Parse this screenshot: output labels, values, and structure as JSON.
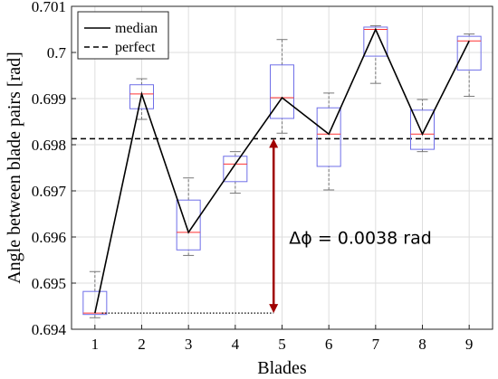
{
  "chart_data": {
    "type": "box",
    "xlabel": "Blades",
    "ylabel": "Angle between blade pairs [rad]",
    "categories": [
      "1",
      "2",
      "3",
      "4",
      "5",
      "6",
      "7",
      "8",
      "9"
    ],
    "xlim": [
      0.5,
      9.5
    ],
    "ylim": [
      0.694,
      0.701
    ],
    "yticks": [
      0.694,
      0.695,
      0.696,
      0.697,
      0.698,
      0.699,
      0.7,
      0.701
    ],
    "ytick_labels": [
      "0.694",
      "0.695",
      "0.696",
      "0.697",
      "0.698",
      "0.699",
      "0.7",
      "0.701"
    ],
    "boxes": [
      {
        "whisker_low": 0.69425,
        "q1": 0.69432,
        "median": 0.69435,
        "q3": 0.69482,
        "whisker_high": 0.69525
      },
      {
        "whisker_low": 0.69855,
        "q1": 0.69878,
        "median": 0.6991,
        "q3": 0.6993,
        "whisker_high": 0.69943
      },
      {
        "whisker_low": 0.6956,
        "q1": 0.69572,
        "median": 0.6961,
        "q3": 0.6968,
        "whisker_high": 0.69728
      },
      {
        "whisker_low": 0.69695,
        "q1": 0.6972,
        "median": 0.69758,
        "q3": 0.69775,
        "whisker_high": 0.69785
      },
      {
        "whisker_low": 0.69825,
        "q1": 0.69857,
        "median": 0.69902,
        "q3": 0.69973,
        "whisker_high": 0.70028
      },
      {
        "whisker_low": 0.69702,
        "q1": 0.69753,
        "median": 0.69823,
        "q3": 0.6988,
        "whisker_high": 0.69912
      },
      {
        "whisker_low": 0.69933,
        "q1": 0.69992,
        "median": 0.7005,
        "q3": 0.70055,
        "whisker_high": 0.70058
      },
      {
        "whisker_low": 0.69785,
        "q1": 0.6979,
        "median": 0.69823,
        "q3": 0.69875,
        "whisker_high": 0.69898
      },
      {
        "whisker_low": 0.69905,
        "q1": 0.69962,
        "median": 0.70025,
        "q3": 0.70035,
        "whisker_high": 0.7004
      }
    ],
    "series": [
      {
        "name": "median",
        "style": "solid",
        "color": "#000000",
        "x": [
          1,
          2,
          3,
          4,
          5,
          6,
          7,
          8,
          9
        ],
        "y": [
          0.69435,
          0.6991,
          0.6961,
          0.69758,
          0.69902,
          0.69823,
          0.7005,
          0.69823,
          0.70025
        ]
      },
      {
        "name": "perfect",
        "style": "dashed",
        "color": "#000000",
        "y": 0.69813
      }
    ],
    "legend_position": "top-left",
    "grid": true,
    "colors": {
      "box": "#6f6fe8",
      "median_mark": "#ff3333",
      "whisker": "#777777",
      "arrow": "#a00000"
    },
    "annotation": {
      "text": "Δϕ = 0.0038 rad",
      "arrow_x": 4.82,
      "arrow_from": 0.69435,
      "arrow_to": 0.69813,
      "dotted_from_x": 1.15,
      "anchor_x": 5.15,
      "anchor_y": 0.69585
    }
  }
}
